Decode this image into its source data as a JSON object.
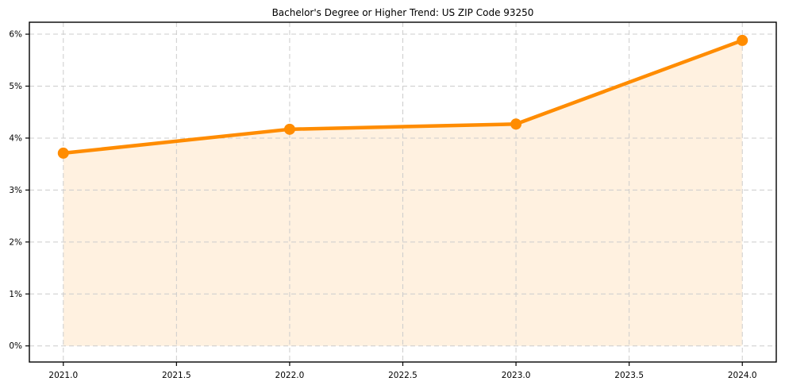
{
  "chart_data": {
    "type": "line",
    "title": "Bachelor's Degree or Higher Trend: US ZIP Code 93250",
    "xlabel": "",
    "ylabel": "",
    "x": [
      2021,
      2022,
      2023,
      2024
    ],
    "series": [
      {
        "name": "Bachelor's Degree or Higher",
        "values": [
          3.71,
          4.17,
          4.27,
          5.88
        ]
      }
    ],
    "unit": "%",
    "fill_baseline": 0,
    "x_ticks": [
      {
        "value": 2021.0,
        "label": "2021.0"
      },
      {
        "value": 2021.5,
        "label": "2021.5"
      },
      {
        "value": 2022.0,
        "label": "2022.0"
      },
      {
        "value": 2022.5,
        "label": "2022.5"
      },
      {
        "value": 2023.0,
        "label": "2023.0"
      },
      {
        "value": 2023.5,
        "label": "2023.5"
      },
      {
        "value": 2024.0,
        "label": "2024.0"
      }
    ],
    "y_ticks": [
      {
        "value": 0,
        "label": "0%"
      },
      {
        "value": 1,
        "label": "1%"
      },
      {
        "value": 2,
        "label": "2%"
      },
      {
        "value": 3,
        "label": "3%"
      },
      {
        "value": 4,
        "label": "4%"
      },
      {
        "value": 5,
        "label": "5%"
      },
      {
        "value": 6,
        "label": "6%"
      }
    ],
    "xlim": [
      2020.85,
      2024.15
    ],
    "ylim": [
      -0.31,
      6.23
    ],
    "grid": "dashed",
    "legend_position": "none",
    "colors": {
      "line": "#ff8c00",
      "fill": "rgba(255,140,0,0.12)",
      "grid": "#cccccc",
      "axis": "#000000",
      "background": "#ffffff"
    }
  }
}
